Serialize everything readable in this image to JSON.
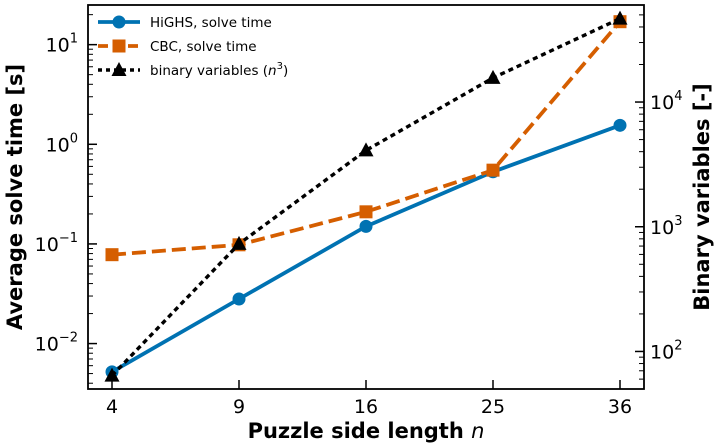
{
  "chart_data": {
    "type": "line",
    "x": [
      4,
      9,
      16,
      25,
      36
    ],
    "x_ticks": [
      "4",
      "9",
      "16",
      "25",
      "36"
    ],
    "xlabel": "Puzzle side length",
    "xlabel_var": "n",
    "ylabel_left": "Average solve time [s]",
    "ylabel_right": "Binary variables [-]",
    "y_left_scale": "log",
    "y_left_range": [
      0.0035,
      25
    ],
    "y_left_ticks": [
      {
        "value": 0.01,
        "mantissa": "10",
        "exp": "−2"
      },
      {
        "value": 0.1,
        "mantissa": "10",
        "exp": "−1"
      },
      {
        "value": 1,
        "mantissa": "10",
        "exp": "0"
      },
      {
        "value": 10,
        "mantissa": "10",
        "exp": "1"
      }
    ],
    "y_right_scale": "log",
    "y_right_range": [
      50,
      60000
    ],
    "y_right_ticks": [
      {
        "value": 100,
        "mantissa": "10",
        "exp": "2"
      },
      {
        "value": 1000,
        "mantissa": "10",
        "exp": "3"
      },
      {
        "value": 10000,
        "mantissa": "10",
        "exp": "4"
      }
    ],
    "grid": false,
    "legend_position": "top-left",
    "series": [
      {
        "name": "HiGHS, solve time",
        "axis": "left",
        "values": [
          0.0052,
          0.028,
          0.15,
          0.53,
          1.55
        ],
        "color": "#0072b2",
        "dash": "solid",
        "marker": "circle"
      },
      {
        "name": "CBC, solve time",
        "axis": "left",
        "values": [
          0.078,
          0.098,
          0.21,
          0.55,
          17
        ],
        "color": "#d55e00",
        "dash": "dashed",
        "marker": "square"
      },
      {
        "name": "binary variables",
        "name_suffix": "n",
        "name_exp": "3",
        "axis": "right",
        "values": [
          64,
          729,
          4096,
          15625,
          46656
        ],
        "color": "#000000",
        "dash": "dotted",
        "marker": "triangle"
      }
    ]
  }
}
